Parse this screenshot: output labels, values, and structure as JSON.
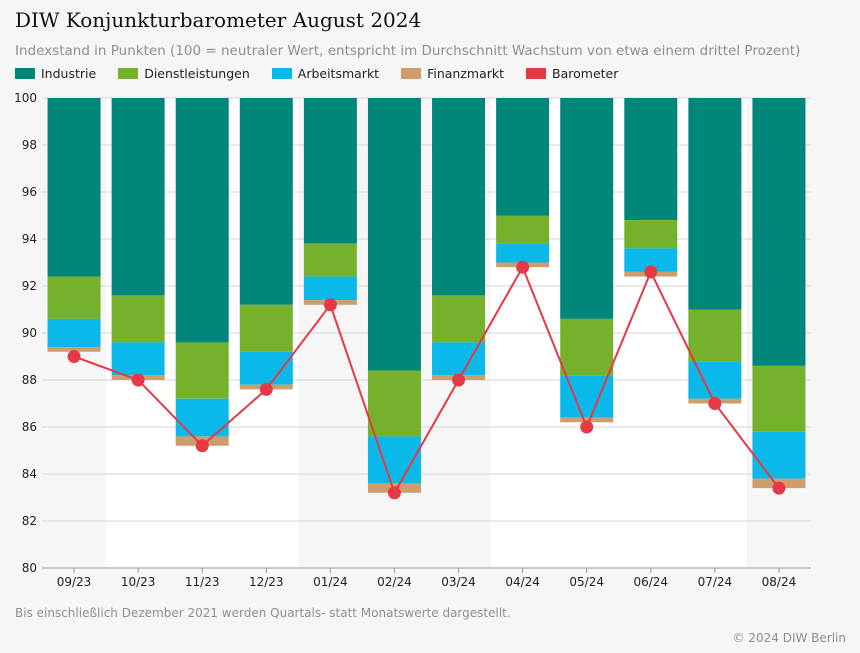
{
  "title": "DIW Konjunkturbarometer August 2024",
  "subtitle": "Indexstand in Punkten (100 = neutraler Wert, entspricht im Durchschnitt Wachstum von etwa einem drittel Prozent)",
  "note": "Bis einschließlich Dezember 2021 werden Quartals- statt Monatswerte dargestellt.",
  "copyright": "© 2024 DIW Berlin",
  "colors": {
    "industrie": "#00877a",
    "dienstleistungen": "#76b12c",
    "arbeitsmarkt": "#0ab9ea",
    "finanzmarkt": "#cd9e6b",
    "barometer": "#e63946"
  },
  "legend": [
    {
      "label": "Industrie",
      "color": "#00877a"
    },
    {
      "label": "Dienstleistungen",
      "color": "#76b12c"
    },
    {
      "label": "Arbeitsmarkt",
      "color": "#0ab9ea"
    },
    {
      "label": "Finanzmarkt",
      "color": "#cd9e6b"
    },
    {
      "label": "Barometer",
      "color": "#e63946"
    }
  ],
  "chart_data": {
    "type": "bar",
    "categories": [
      "09/23",
      "10/23",
      "11/23",
      "12/23",
      "01/24",
      "02/24",
      "03/24",
      "04/24",
      "05/24",
      "06/24",
      "07/24",
      "08/24"
    ],
    "series": [
      {
        "name": "Industrie",
        "values": [
          92.4,
          91.6,
          89.6,
          91.2,
          93.8,
          88.4,
          91.6,
          95.0,
          90.6,
          94.8,
          91.0,
          88.6
        ]
      },
      {
        "name": "Dienstleistungen",
        "values": [
          90.6,
          89.6,
          87.2,
          89.2,
          92.4,
          85.6,
          89.6,
          93.8,
          88.2,
          93.6,
          88.8,
          85.8
        ]
      },
      {
        "name": "Arbeitsmarkt",
        "values": [
          89.4,
          88.2,
          85.6,
          87.8,
          91.4,
          83.6,
          88.2,
          93.0,
          86.4,
          92.6,
          87.2,
          83.8
        ]
      },
      {
        "name": "Finanzmarkt",
        "values": [
          89.2,
          88.0,
          85.2,
          87.6,
          91.2,
          83.2,
          88.0,
          92.8,
          86.2,
          92.4,
          87.0,
          83.4
        ]
      },
      {
        "name": "Barometer",
        "values": [
          89.0,
          88.0,
          85.2,
          87.6,
          91.2,
          83.2,
          88.0,
          92.8,
          86.0,
          92.6,
          87.0,
          83.4
        ]
      }
    ],
    "ylim": [
      80,
      100
    ],
    "yticks": [
      80,
      82,
      84,
      86,
      88,
      90,
      92,
      94,
      96,
      98,
      100
    ],
    "grid": true,
    "legend_position": "top-left"
  }
}
